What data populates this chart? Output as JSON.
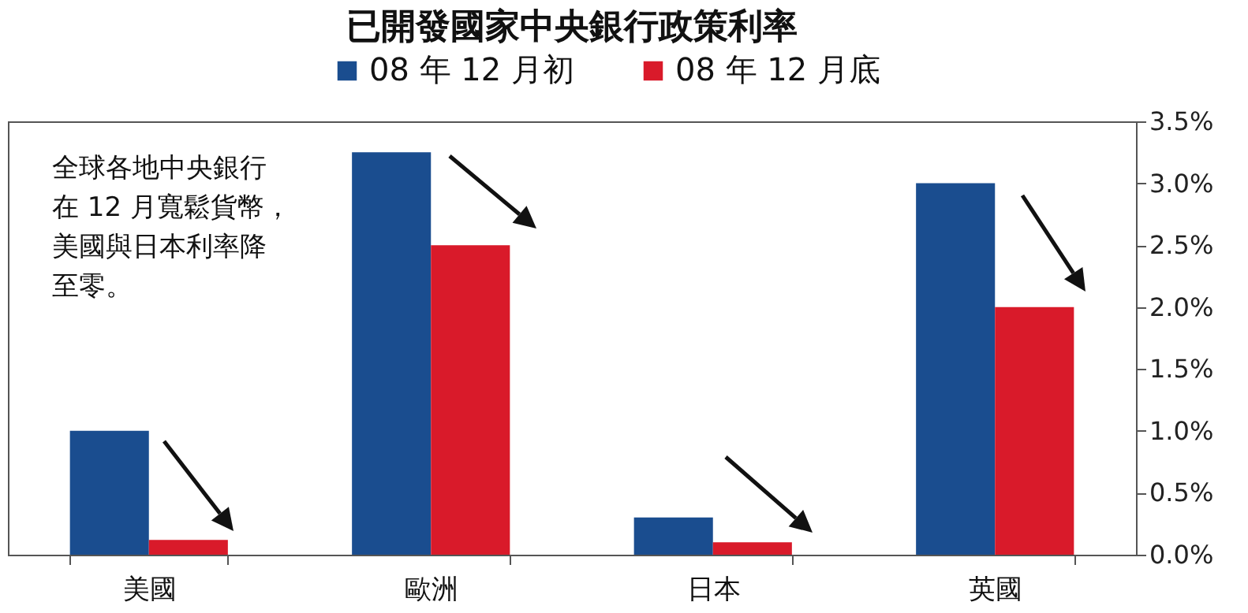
{
  "chart_data": {
    "type": "bar",
    "title": "已開發國家中央銀行政策利率",
    "categories": [
      "美國",
      "歐洲",
      "日本",
      "英國"
    ],
    "series": [
      {
        "name": "08 年 12 月初",
        "color": "#1a4d8f",
        "values": [
          1.0,
          3.25,
          0.3,
          3.0
        ]
      },
      {
        "name": "08 年 12 月底",
        "color": "#d91a2a",
        "values": [
          0.12,
          2.5,
          0.1,
          2.0
        ]
      }
    ],
    "ylim": [
      0,
      3.5
    ],
    "yticks": [
      {
        "value": 0,
        "label": "0.0%"
      },
      {
        "value": 0.5,
        "label": "0.5%"
      },
      {
        "value": 1,
        "label": "1.0%"
      },
      {
        "value": 1.5,
        "label": "1.5%"
      },
      {
        "value": 2,
        "label": "2.0%"
      },
      {
        "value": 2.5,
        "label": "2.5%"
      },
      {
        "value": 3,
        "label": "3.0%"
      },
      {
        "value": 3.5,
        "label": "3.5%"
      }
    ],
    "grid": false,
    "legend": "top",
    "annotations": [
      "全球各地中央銀行在 12 月寬鬆貨幣，美國與日本利率降至零。"
    ]
  }
}
